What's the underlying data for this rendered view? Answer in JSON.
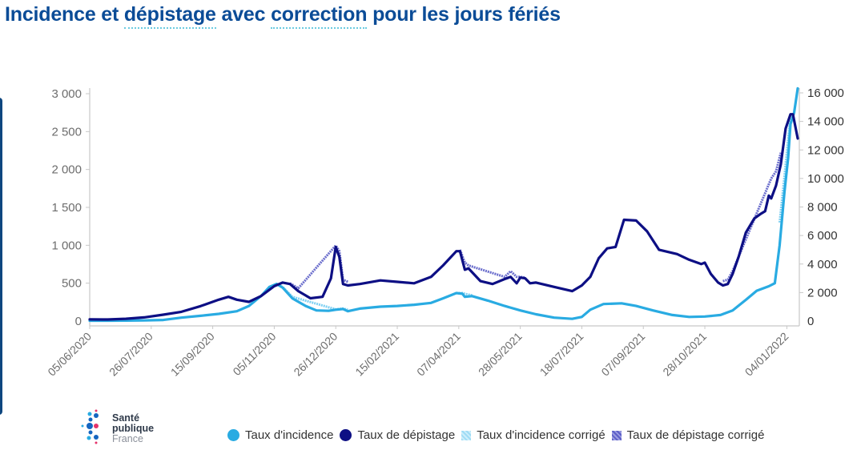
{
  "title": {
    "parts": [
      "Incidence et ",
      "dépistage",
      " avec ",
      "correction",
      " pour les jours fériés"
    ]
  },
  "logo": {
    "line1": "Santé",
    "line2": "publique",
    "line3": "France"
  },
  "colors": {
    "incidence": "#29abe2",
    "depistage": "#0d0f84",
    "incidence_corrige": "#9fdcf5",
    "depistage_corrige": "#6a6dcc",
    "title": "#0b4c97",
    "axis": "#c8c8c8"
  },
  "legend": [
    {
      "label": "Taux d'incidence",
      "marker": "circle",
      "color": "#29abe2"
    },
    {
      "label": "Taux de dépistage",
      "marker": "circle",
      "color": "#0d0f84"
    },
    {
      "label": "Taux d'incidence corrigé",
      "marker": "hatched-square",
      "color": "#9fdcf5"
    },
    {
      "label": "Taux de dépistage corrigé",
      "marker": "hatched-square",
      "color": "#6a6dcc"
    }
  ],
  "chart_data": {
    "type": "line",
    "title": "Incidence et dépistage avec correction pour les jours fériés",
    "xlabel": "",
    "ylabel_left": "",
    "ylabel_right": "",
    "x_tick_labels": [
      "05/06/2020",
      "26/07/2020",
      "15/09/2020",
      "05/11/2020",
      "26/12/2020",
      "15/02/2021",
      "07/04/2021",
      "28/05/2021",
      "18/07/2021",
      "07/09/2021",
      "28/10/2021",
      "04/01/2022"
    ],
    "y_left": {
      "range": [
        0,
        3000
      ],
      "ticks": [
        0,
        500,
        1000,
        1500,
        2000,
        2500,
        3000
      ],
      "tick_labels": [
        "0",
        "500",
        "1 000",
        "1 500",
        "2 000",
        "2 500",
        "3 000"
      ]
    },
    "y_right": {
      "range": [
        0,
        16000
      ],
      "ticks": [
        0,
        2000,
        4000,
        6000,
        8000,
        10000,
        12000,
        14000,
        16000
      ],
      "tick_labels": [
        "0",
        "2 000",
        "4 000",
        "6 000",
        "8 000",
        "10 000",
        "12 000",
        "14 000",
        "16 000"
      ]
    },
    "grid": false,
    "legend_position": "bottom",
    "x_start": "05/06/2020",
    "x_end": "13/01/2022",
    "series": [
      {
        "name": "Taux d'incidence",
        "axis": "left",
        "style": "solid",
        "points": [
          [
            "05/06/2020",
            5
          ],
          [
            "20/06/2020",
            5
          ],
          [
            "05/07/2020",
            6
          ],
          [
            "20/07/2020",
            8
          ],
          [
            "05/08/2020",
            15
          ],
          [
            "20/08/2020",
            45
          ],
          [
            "05/09/2020",
            70
          ],
          [
            "20/09/2020",
            95
          ],
          [
            "05/10/2020",
            130
          ],
          [
            "15/10/2020",
            200
          ],
          [
            "25/10/2020",
            330
          ],
          [
            "01/11/2020",
            450
          ],
          [
            "07/11/2020",
            490
          ],
          [
            "12/11/2020",
            440
          ],
          [
            "20/11/2020",
            300
          ],
          [
            "01/12/2020",
            200
          ],
          [
            "10/12/2020",
            140
          ],
          [
            "20/12/2020",
            135
          ],
          [
            "26/12/2020",
            150
          ],
          [
            "01/01/2021",
            160
          ],
          [
            "05/01/2021",
            130
          ],
          [
            "15/01/2021",
            165
          ],
          [
            "01/02/2021",
            190
          ],
          [
            "15/02/2021",
            200
          ],
          [
            "01/03/2021",
            215
          ],
          [
            "15/03/2021",
            240
          ],
          [
            "25/03/2021",
            300
          ],
          [
            "05/04/2021",
            370
          ],
          [
            "10/04/2021",
            360
          ],
          [
            "12/04/2021",
            320
          ],
          [
            "18/04/2021",
            330
          ],
          [
            "01/05/2021",
            270
          ],
          [
            "15/05/2021",
            200
          ],
          [
            "28/05/2021",
            140
          ],
          [
            "10/06/2021",
            90
          ],
          [
            "25/06/2021",
            45
          ],
          [
            "10/07/2021",
            30
          ],
          [
            "18/07/2021",
            55
          ],
          [
            "25/07/2021",
            150
          ],
          [
            "05/08/2021",
            225
          ],
          [
            "20/08/2021",
            235
          ],
          [
            "01/09/2021",
            200
          ],
          [
            "15/09/2021",
            140
          ],
          [
            "01/10/2021",
            80
          ],
          [
            "15/10/2021",
            55
          ],
          [
            "28/10/2021",
            60
          ],
          [
            "10/11/2021",
            80
          ],
          [
            "20/11/2021",
            140
          ],
          [
            "01/12/2021",
            280
          ],
          [
            "10/12/2021",
            400
          ],
          [
            "20/12/2021",
            460
          ],
          [
            "25/12/2021",
            500
          ],
          [
            "29/12/2021",
            1000
          ],
          [
            "02/01/2022",
            1700
          ],
          [
            "05/01/2022",
            2150
          ],
          [
            "07/01/2022",
            2600
          ],
          [
            "10/01/2022",
            2750
          ],
          [
            "13/01/2022",
            3070
          ]
        ]
      },
      {
        "name": "Taux de dépistage",
        "axis": "right",
        "style": "solid",
        "points": [
          [
            "05/06/2020",
            120
          ],
          [
            "20/06/2020",
            110
          ],
          [
            "05/07/2020",
            160
          ],
          [
            "20/07/2020",
            260
          ],
          [
            "05/08/2020",
            450
          ],
          [
            "20/08/2020",
            650
          ],
          [
            "05/09/2020",
            1050
          ],
          [
            "20/09/2020",
            1500
          ],
          [
            "28/09/2020",
            1700
          ],
          [
            "05/10/2020",
            1500
          ],
          [
            "15/10/2020",
            1350
          ],
          [
            "25/10/2020",
            1750
          ],
          [
            "05/11/2020",
            2450
          ],
          [
            "12/11/2020",
            2700
          ],
          [
            "18/11/2020",
            2600
          ],
          [
            "25/11/2020",
            2100
          ],
          [
            "05/12/2020",
            1600
          ],
          [
            "15/12/2020",
            1700
          ],
          [
            "22/12/2020",
            3000
          ],
          [
            "26/12/2020",
            5200
          ],
          [
            "29/12/2020",
            4500
          ],
          [
            "01/01/2021",
            2600
          ],
          [
            "05/01/2021",
            2500
          ],
          [
            "15/01/2021",
            2600
          ],
          [
            "01/02/2021",
            2850
          ],
          [
            "15/02/2021",
            2750
          ],
          [
            "01/03/2021",
            2650
          ],
          [
            "15/03/2021",
            3100
          ],
          [
            "25/03/2021",
            3900
          ],
          [
            "05/04/2021",
            4900
          ],
          [
            "08/04/2021",
            4900
          ],
          [
            "12/04/2021",
            3600
          ],
          [
            "15/04/2021",
            3700
          ],
          [
            "25/04/2021",
            2800
          ],
          [
            "05/05/2021",
            2600
          ],
          [
            "15/05/2021",
            2950
          ],
          [
            "20/05/2021",
            3100
          ],
          [
            "25/05/2021",
            2650
          ],
          [
            "28/05/2021",
            3050
          ],
          [
            "01/06/2021",
            3000
          ],
          [
            "05/06/2021",
            2650
          ],
          [
            "10/06/2021",
            2700
          ],
          [
            "25/06/2021",
            2400
          ],
          [
            "10/07/2021",
            2100
          ],
          [
            "18/07/2021",
            2500
          ],
          [
            "25/07/2021",
            3100
          ],
          [
            "01/08/2021",
            4400
          ],
          [
            "08/08/2021",
            5100
          ],
          [
            "15/08/2021",
            5200
          ],
          [
            "22/08/2021",
            7100
          ],
          [
            "01/09/2021",
            7050
          ],
          [
            "10/09/2021",
            6300
          ],
          [
            "20/09/2021",
            5000
          ],
          [
            "05/10/2021",
            4700
          ],
          [
            "15/10/2021",
            4300
          ],
          [
            "25/10/2021",
            4000
          ],
          [
            "28/10/2021",
            4100
          ],
          [
            "02/11/2021",
            3300
          ],
          [
            "08/11/2021",
            2700
          ],
          [
            "12/11/2021",
            2500
          ],
          [
            "16/11/2021",
            2600
          ],
          [
            "20/11/2021",
            3300
          ],
          [
            "25/11/2021",
            4500
          ],
          [
            "01/12/2021",
            6200
          ],
          [
            "08/12/2021",
            7200
          ],
          [
            "13/12/2021",
            7500
          ],
          [
            "17/12/2021",
            7700
          ],
          [
            "20/12/2021",
            8800
          ],
          [
            "22/12/2021",
            8600
          ],
          [
            "26/12/2021",
            9500
          ],
          [
            "30/12/2021",
            11000
          ],
          [
            "03/01/2022",
            13500
          ],
          [
            "07/01/2022",
            14500
          ],
          [
            "09/01/2022",
            14500
          ],
          [
            "13/01/2022",
            12800
          ]
        ]
      },
      {
        "name": "Taux d'incidence corrigé",
        "axis": "left",
        "style": "hatched",
        "points": [
          [
            "07/11/2020",
            490
          ],
          [
            "12/11/2020",
            450
          ],
          [
            "20/11/2020",
            320
          ],
          [
            "26/12/2020",
            155
          ],
          [
            "01/01/2021",
            165
          ],
          [
            "05/01/2021",
            150
          ],
          [
            "05/04/2021",
            370
          ],
          [
            "10/04/2021",
            370
          ],
          [
            "12/04/2021",
            360
          ],
          [
            "18/04/2021",
            340
          ],
          [
            "29/12/2021",
            1300
          ],
          [
            "02/01/2022",
            1900
          ],
          [
            "05/01/2022",
            2400
          ],
          [
            "07/01/2022",
            2700
          ]
        ]
      },
      {
        "name": "Taux de dépistage corrigé",
        "axis": "right",
        "style": "hatched",
        "points": [
          [
            "18/11/2020",
            2650
          ],
          [
            "25/11/2020",
            2300
          ],
          [
            "26/12/2020",
            5300
          ],
          [
            "29/12/2020",
            4900
          ],
          [
            "01/01/2021",
            2900
          ],
          [
            "05/01/2021",
            2750
          ],
          [
            "08/04/2021",
            5000
          ],
          [
            "12/04/2021",
            4100
          ],
          [
            "15/04/2021",
            3900
          ],
          [
            "15/05/2021",
            3100
          ],
          [
            "20/05/2021",
            3500
          ],
          [
            "25/05/2021",
            3100
          ],
          [
            "28/05/2021",
            3100
          ],
          [
            "01/06/2021",
            3050
          ],
          [
            "25/07/2021",
            3300
          ],
          [
            "12/11/2021",
            2800
          ],
          [
            "16/11/2021",
            2900
          ],
          [
            "20/11/2021",
            3500
          ],
          [
            "22/12/2021",
            10000
          ],
          [
            "26/12/2021",
            10500
          ],
          [
            "30/12/2021",
            11800
          ]
        ]
      }
    ]
  }
}
